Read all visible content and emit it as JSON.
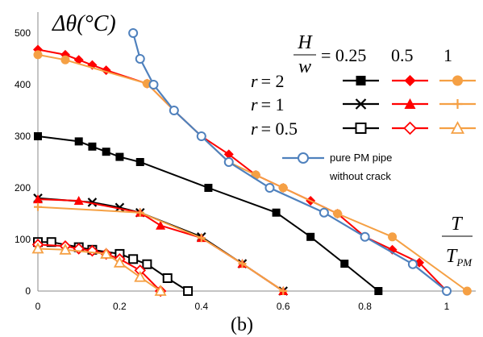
{
  "chart_data": {
    "type": "line",
    "title": "",
    "subtitle": "(b)",
    "ylabel": "Δθ(°C)",
    "xlabel_num": "T",
    "xlabel_den": "T_PM",
    "xlabel_den_main": "T",
    "xlabel_den_sub": "PM",
    "xlim": [
      0,
      1.1
    ],
    "ylim": [
      0,
      500
    ],
    "xticks": [
      "0",
      "0.2",
      "0.4",
      "0.6",
      "0.8",
      "1"
    ],
    "yticks": [
      "0",
      "100",
      "200",
      "300",
      "400",
      "500"
    ],
    "grid": false,
    "legend_header": {
      "ratio_num": "H",
      "ratio_den": "w",
      "eq_text": "= 0.25",
      "col2": "0.5",
      "col3": "1"
    },
    "legend_rows": [
      "r = 2",
      "r = 1",
      "r = 0.5"
    ],
    "legend_rows_parts": [
      {
        "var": "r",
        "val": "= 2"
      },
      {
        "var": "r",
        "val": "= 1"
      },
      {
        "var": "r",
        "val": "= 0.5"
      }
    ],
    "legend_extra": [
      "pure PM pipe",
      "without crack"
    ],
    "series": [
      {
        "key": "r2_h025",
        "color": "#000000",
        "marker": "square-filled",
        "x": [
          0,
          0.1,
          0.133,
          0.167,
          0.2,
          0.25,
          0.417,
          0.583,
          0.667,
          0.75,
          0.833
        ],
        "y": [
          300,
          290,
          280,
          270,
          260,
          250,
          200,
          152,
          105,
          53,
          0
        ]
      },
      {
        "key": "r2_h05",
        "color": "#ff0000",
        "marker": "diamond-filled",
        "x": [
          0,
          0.067,
          0.1,
          0.133,
          0.167,
          0.267,
          0.333,
          0.4,
          0.467,
          0.533,
          0.6,
          0.667,
          0.733,
          0.8,
          0.867,
          0.933,
          1.0
        ],
        "y": [
          468,
          458,
          448,
          438,
          428,
          402,
          350,
          300,
          265,
          225,
          200,
          175,
          150,
          105,
          80,
          55,
          0
        ]
      },
      {
        "key": "r2_h1",
        "color": "#f5a044",
        "marker": "circle-filled",
        "x": [
          0,
          0.067,
          0.267,
          0.333,
          0.4,
          0.467,
          0.533,
          0.6,
          0.733,
          0.867,
          1.05
        ],
        "y": [
          458,
          448,
          402,
          350,
          300,
          250,
          225,
          200,
          150,
          105,
          0
        ]
      },
      {
        "key": "r1_h025",
        "color": "#000000",
        "marker": "cross",
        "x": [
          0,
          0.133,
          0.2,
          0.25,
          0.4,
          0.5,
          0.6
        ],
        "y": [
          180,
          172,
          162,
          152,
          105,
          53,
          0
        ]
      },
      {
        "key": "r1_h05",
        "color": "#ff0000",
        "marker": "triangle-filled",
        "x": [
          0,
          0.1,
          0.25,
          0.3,
          0.4,
          0.5,
          0.6
        ],
        "y": [
          178,
          175,
          152,
          127,
          103,
          53,
          0
        ]
      },
      {
        "key": "r1_h1",
        "color": "#f5a044",
        "marker": "plus",
        "x": [
          0,
          0.25,
          0.4,
          0.5,
          0.6
        ],
        "y": [
          163,
          152,
          103,
          53,
          0
        ]
      },
      {
        "key": "r05_h025",
        "color": "#000000",
        "marker": "square-open",
        "x": [
          0,
          0.033,
          0.1,
          0.133,
          0.2,
          0.233,
          0.267,
          0.317,
          0.367
        ],
        "y": [
          95,
          95,
          85,
          80,
          72,
          62,
          52,
          25,
          0
        ]
      },
      {
        "key": "r05_h05",
        "color": "#ff0000",
        "marker": "diamond-open",
        "x": [
          0,
          0.067,
          0.1,
          0.133,
          0.167,
          0.2,
          0.25,
          0.3
        ],
        "y": [
          90,
          87,
          82,
          78,
          72,
          62,
          40,
          0
        ]
      },
      {
        "key": "r05_h1",
        "color": "#f5a044",
        "marker": "triangle-open",
        "x": [
          0,
          0.067,
          0.167,
          0.2,
          0.25,
          0.3
        ],
        "y": [
          82,
          80,
          72,
          55,
          27,
          0
        ]
      },
      {
        "key": "pure_pm",
        "color": "#4f81bd",
        "marker": "circle-open",
        "x": [
          0.233,
          0.25,
          0.283,
          0.333,
          0.4,
          0.467,
          0.567,
          0.7,
          0.8,
          0.917,
          1.0
        ],
        "y": [
          500,
          450,
          400,
          350,
          300,
          250,
          200,
          152,
          105,
          52,
          0
        ]
      }
    ]
  }
}
